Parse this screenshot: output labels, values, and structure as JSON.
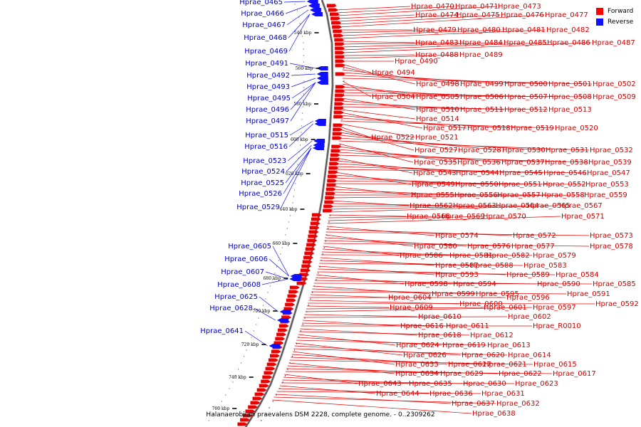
{
  "caption": "Halanaerobium praevalens DSM 2228, complete genome. - 0..2309262",
  "legend": [
    {
      "label": "Forward",
      "color": "#ff0000"
    },
    {
      "label": "Reverse",
      "color": "#1010ff"
    }
  ],
  "colors": {
    "forward": "#e80000",
    "reverse": "#1010ff",
    "forward_text": "#d00000",
    "reverse_text": "#0000c8",
    "backbone": "#888888"
  },
  "ticks": [
    "540 kbp",
    "560 kbp",
    "580 kbp",
    "600 kbp",
    "620 kbp",
    "640 kbp",
    "660 kbp",
    "680 kbp",
    "700 kbp",
    "720 kbp",
    "740 kbp",
    "760 kbp"
  ],
  "reverse_labels": [
    "Hprae_0465",
    "Hprae_0466",
    "Hprae_0467",
    "Hprae_0468",
    "Hprae_0469",
    "Hprae_0491",
    "Hprae_0492",
    "Hprae_0493",
    "Hprae_0495",
    "Hprae_0496",
    "Hprae_0497",
    "Hprae_0515",
    "Hprae_0516",
    "Hprae_0523",
    "Hprae_0524",
    "Hprae_0525",
    "Hprae_0526",
    "Hprae_0529",
    "Hprae_0605",
    "Hprae_0606",
    "Hprae_0607",
    "Hprae_0608",
    "Hprae_0625",
    "Hprae_0628",
    "Hprae_0641"
  ],
  "forward_labels": [
    "Hprae_0470",
    "Hprae_0471",
    "Hprae_0473",
    "Hprae_0474",
    "Hprae_0475",
    "Hprae_0476",
    "Hprae_0477",
    "Hprae_0479",
    "Hprae_0480",
    "Hprae_0481",
    "Hprae_0482",
    "Hprae_0483",
    "Hprae_0484",
    "Hprae_0485",
    "Hprae_0486",
    "Hprae_0487",
    "Hprae_0488",
    "Hprae_0489",
    "Hprae_0490",
    "Hprae_0494",
    "Hprae_0498",
    "Hprae_0499",
    "Hprae_0500",
    "Hprae_0501",
    "Hprae_0502",
    "Hprae_0504",
    "Hprae_0505",
    "Hprae_0506",
    "Hprae_0507",
    "Hprae_0508",
    "Hprae_0509",
    "Hprae_0510",
    "Hprae_0511",
    "Hprae_0512",
    "Hprae_0513",
    "Hprae_0514",
    "Hprae_0517",
    "Hprae_0518",
    "Hprae_0519",
    "Hprae_0520",
    "Hprae_0521",
    "Hprae_0522",
    "Hprae_0527",
    "Hprae_0528",
    "Hprae_0530",
    "Hprae_0531",
    "Hprae_0532",
    "Hprae_0535",
    "Hprae_0536",
    "Hprae_0537",
    "Hprae_0538",
    "Hprae_0539",
    "Hprae_0543",
    "Hprae_0544",
    "Hprae_0545",
    "Hprae_0546",
    "Hprae_0547",
    "Hprae_0549",
    "Hprae_0550",
    "Hprae_0551",
    "Hprae_0552",
    "Hprae_0553",
    "Hprae_0555",
    "Hprae_0556",
    "Hprae_0557",
    "Hprae_0558",
    "Hprae_0559",
    "Hprae_0562",
    "Hprae_0563",
    "Hprae_0564",
    "Hprae_0565",
    "Hprae_0566",
    "Hprae_0567",
    "Hprae_0569",
    "Hprae_0570",
    "Hprae_0571",
    "Hprae_0572",
    "Hprae_0573",
    "Hprae_0574",
    "Hprae_0576",
    "Hprae_0577",
    "Hprae_0578",
    "Hprae_0579",
    "Hprae_0580",
    "Hprae_0581",
    "Hprae_0582",
    "Hprae_0583",
    "Hprae_0584",
    "Hprae_0585",
    "Hprae_0586",
    "Hprae_0587",
    "Hprae_0588",
    "Hprae_0589",
    "Hprae_0590",
    "Hprae_0591",
    "Hprae_0592",
    "Hprae_0593",
    "Hprae_0594",
    "Hprae_0595",
    "Hprae_0596",
    "Hprae_0597",
    "Hprae_0598",
    "Hprae_0599",
    "Hprae_0600",
    "Hprae_0601",
    "Hprae_0602",
    "Hprae_0604",
    "Hprae_0609",
    "Hprae_0610",
    "Hprae_0611",
    "Hprae_0612",
    "Hprae_0613",
    "Hprae_0614",
    "Hprae_0615",
    "Hprae_0616",
    "Hprae_0617",
    "Hprae_0618",
    "Hprae_0619",
    "Hprae_0620",
    "Hprae_0621",
    "Hprae_0622",
    "Hprae_0623",
    "Hprae_0624",
    "Hprae_0626",
    "Hprae_0627",
    "Hprae_0629",
    "Hprae_0630",
    "Hprae_0631",
    "Hprae_0632",
    "Hprae_0633",
    "Hprae_0634",
    "Hprae_0635",
    "Hprae_0636",
    "Hprae_0637",
    "Hprae_0638",
    "Hprae_0643",
    "Hprae_0644",
    "Hprae_R0010"
  ]
}
